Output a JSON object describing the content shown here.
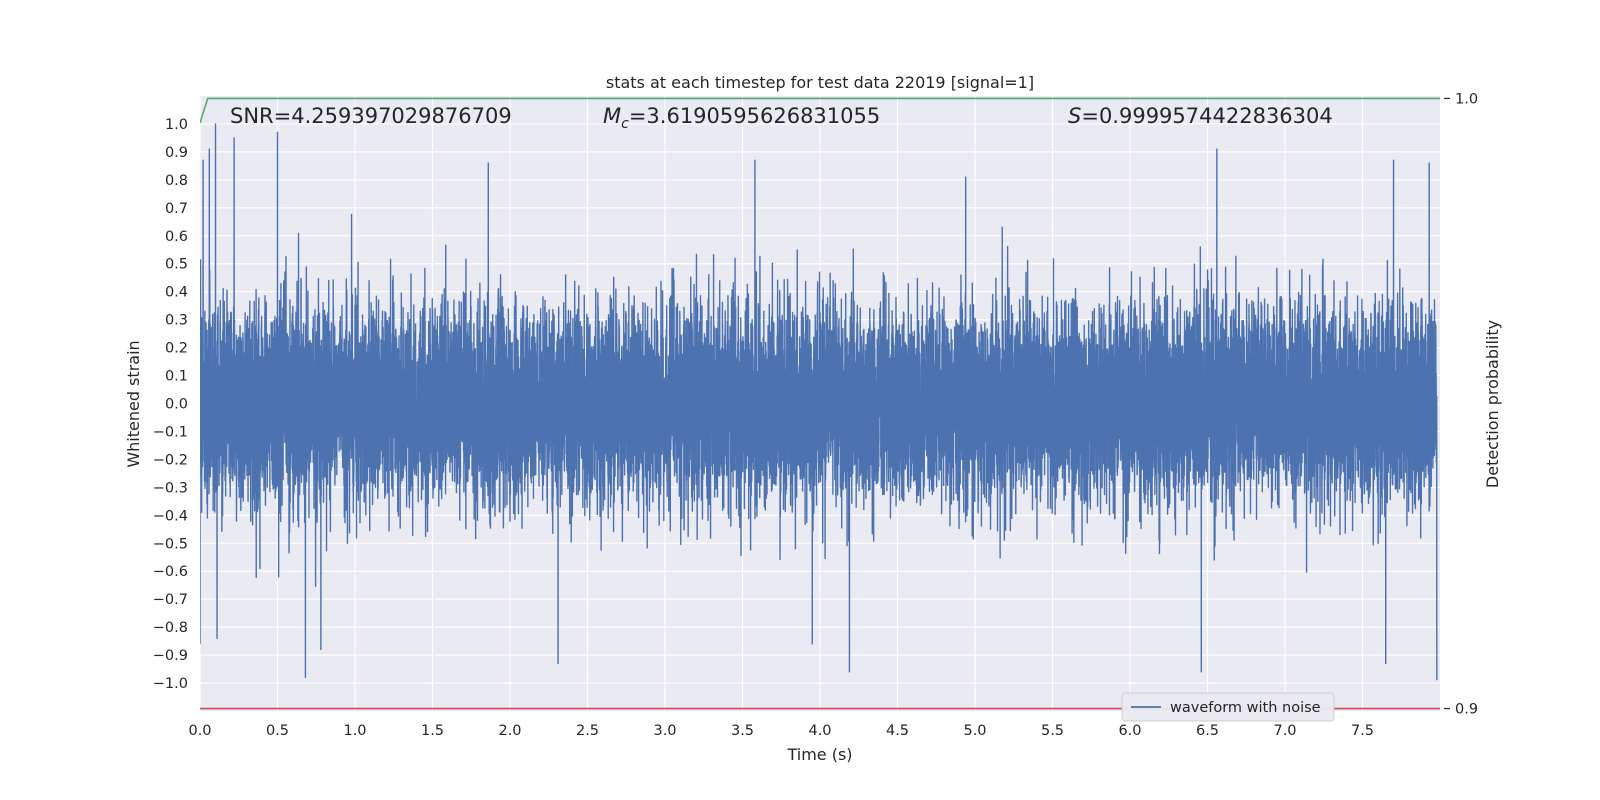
{
  "chart_data": {
    "type": "line",
    "title": "stats at each timestep for test data 22019 [signal=1]",
    "xlabel": "Time (s)",
    "ylabel": "Whitened strain",
    "y2label": "Detection probability",
    "xlim": [
      0.0,
      8.0
    ],
    "ylim": [
      -1.1,
      1.1
    ],
    "y2lim": [
      0.8996,
      1.0004
    ],
    "x_ticks": [
      "0.0",
      "0.5",
      "1.0",
      "1.5",
      "2.0",
      "2.5",
      "3.0",
      "3.5",
      "4.0",
      "4.5",
      "5.0",
      "5.5",
      "6.0",
      "6.5",
      "7.0",
      "7.5"
    ],
    "y_ticks": [
      "1.0",
      "0.9",
      "0.8",
      "0.7",
      "0.6",
      "0.5",
      "0.4",
      "0.3",
      "0.2",
      "0.1",
      "0.0",
      "−0.1",
      "−0.2",
      "−0.3",
      "−0.4",
      "−0.5",
      "−0.6",
      "−0.7",
      "−0.8",
      "−0.9",
      "−1.0"
    ],
    "y2_ticks": [
      "1.0",
      "0.9"
    ],
    "grid": true,
    "legend": {
      "position": "lower-right",
      "entries": [
        "waveform with noise"
      ]
    },
    "annotations": {
      "snr": "SNR=4.259397029876709",
      "mc_symbol": "M",
      "mc_sub": "c",
      "mc_value": "=3.6190595626831055",
      "s_symbol": "S",
      "s_value": "=0.9999574422836304"
    },
    "series": [
      {
        "name": "waveform with noise",
        "axis": "left",
        "color": "#4c72b0",
        "sample_rate_hz": 2048,
        "noise_sigma": 0.17,
        "peaks": [
          [
            0.0,
            -0.86
          ],
          [
            0.02,
            0.87
          ],
          [
            0.06,
            0.91
          ],
          [
            0.1,
            1.0
          ],
          [
            0.11,
            -0.84
          ],
          [
            0.22,
            0.95
          ],
          [
            0.5,
            0.97
          ],
          [
            0.68,
            -0.98
          ],
          [
            0.78,
            -0.88
          ],
          [
            1.86,
            0.86
          ],
          [
            2.31,
            -0.93
          ],
          [
            3.58,
            0.87
          ],
          [
            3.95,
            -0.86
          ],
          [
            4.19,
            -0.96
          ],
          [
            4.94,
            0.81
          ],
          [
            6.46,
            -0.96
          ],
          [
            6.56,
            0.91
          ],
          [
            7.65,
            -0.93
          ],
          [
            7.7,
            0.87
          ],
          [
            7.93,
            0.86
          ],
          [
            7.98,
            -0.99
          ]
        ]
      },
      {
        "name": "detection probability",
        "axis": "right",
        "color": "#55a868",
        "x": [
          0.0,
          0.05,
          0.08,
          8.0
        ],
        "values": [
          0.996,
          1.0,
          1.0,
          1.0
        ]
      },
      {
        "name": "threshold",
        "axis": "right",
        "color": "#c44e52",
        "x": [
          0.0,
          8.0
        ],
        "values": [
          0.9,
          0.9
        ]
      }
    ]
  }
}
